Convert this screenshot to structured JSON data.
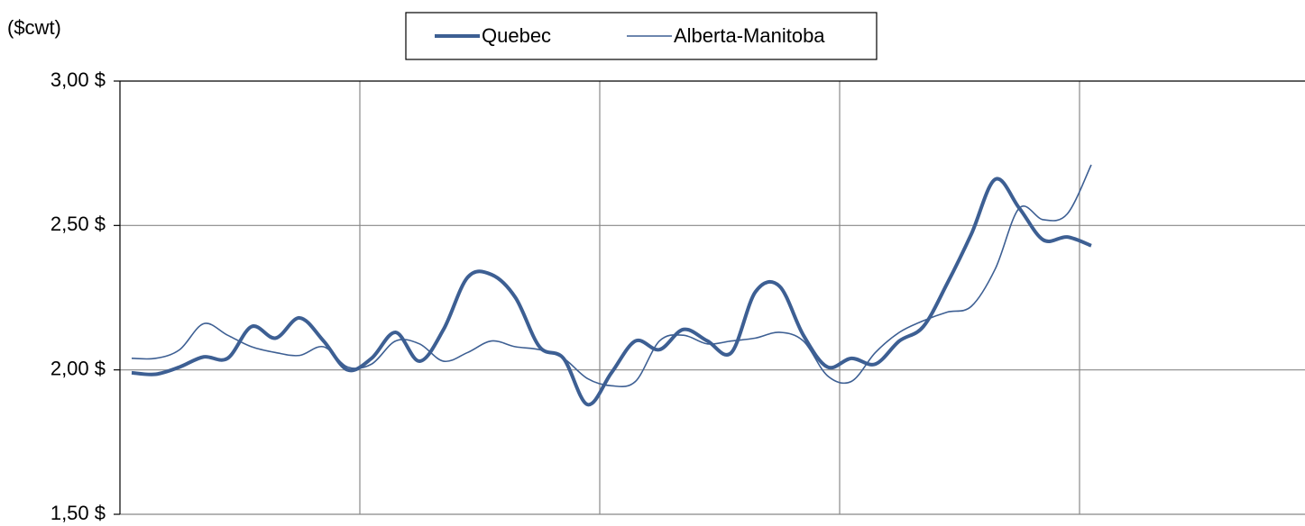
{
  "chart_data": {
    "type": "line",
    "y_label": "($cwt)",
    "categories": [
      null,
      null,
      null,
      null,
      null,
      null,
      null,
      null,
      null,
      null,
      null,
      null,
      null,
      null,
      null,
      null,
      null,
      null,
      null,
      null,
      null,
      null,
      null,
      null,
      null,
      null,
      null,
      null,
      null,
      null,
      null,
      null,
      null,
      null,
      null,
      null,
      null,
      null,
      null,
      null,
      null
    ],
    "series": [
      {
        "name": "Quebec",
        "color": "#3d5f93",
        "width": 4,
        "values": [
          1.99,
          1.985,
          2.01,
          2.045,
          2.04,
          2.15,
          2.11,
          2.18,
          2.1,
          2.0,
          2.04,
          2.13,
          2.03,
          2.14,
          2.32,
          2.33,
          2.25,
          2.08,
          2.04,
          1.88,
          1.99,
          2.1,
          2.07,
          2.14,
          2.1,
          2.06,
          2.27,
          2.29,
          2.12,
          2.01,
          2.04,
          2.02,
          2.1,
          2.15,
          2.3,
          2.47,
          2.66,
          2.56,
          2.45,
          2.46,
          2.43
        ]
      },
      {
        "name": "Alberta-Manitoba",
        "color": "#3d5f93",
        "width": 1.6,
        "values": [
          2.04,
          2.04,
          2.07,
          2.16,
          2.12,
          2.08,
          2.06,
          2.05,
          2.08,
          2.01,
          2.02,
          2.1,
          2.09,
          2.03,
          2.06,
          2.1,
          2.08,
          2.07,
          2.04,
          1.97,
          1.945,
          1.96,
          2.1,
          2.12,
          2.09,
          2.1,
          2.11,
          2.13,
          2.1,
          1.98,
          1.96,
          2.06,
          2.13,
          2.17,
          2.2,
          2.22,
          2.35,
          2.56,
          2.52,
          2.54,
          2.71
        ]
      }
    ],
    "ylim": [
      1.5,
      3.0
    ],
    "yticks": [
      {
        "value": 1.5,
        "label": "1,50 $"
      },
      {
        "value": 2.0,
        "label": "2,00 $"
      },
      {
        "value": 2.5,
        "label": "2,50 $"
      },
      {
        "value": 3.0,
        "label": "3,00 $"
      }
    ],
    "grid": true,
    "legend": "top"
  }
}
